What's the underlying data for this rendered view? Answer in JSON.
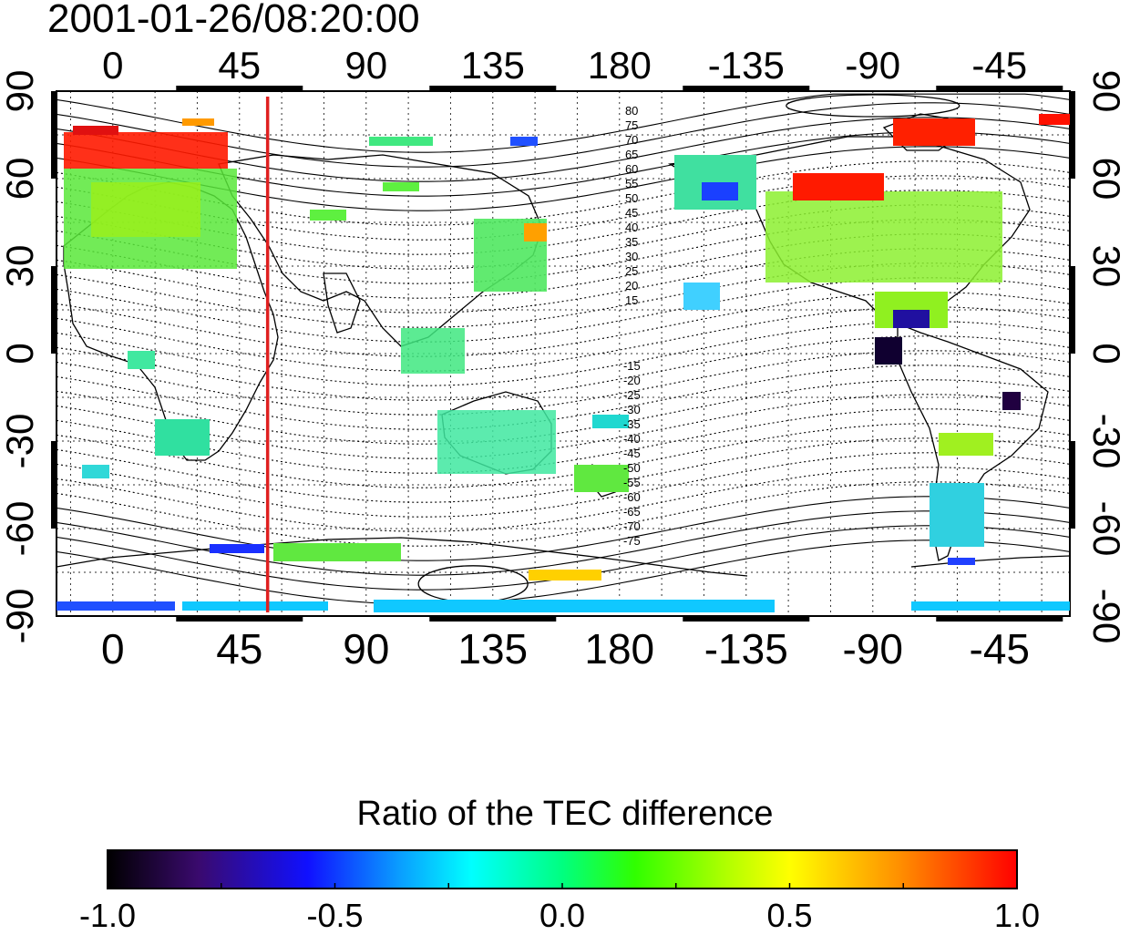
{
  "title": "2001-01-26/08:20:00",
  "lon_ticks": [
    "0",
    "45",
    "90",
    "135",
    "180",
    "-135",
    "-90",
    "-45"
  ],
  "lat_ticks": [
    "90",
    "60",
    "30",
    "0",
    "-30",
    "-60",
    "-90"
  ],
  "lon_tick_values": [
    0,
    45,
    90,
    135,
    180,
    225,
    270,
    315
  ],
  "lat_tick_values": [
    90,
    60,
    30,
    0,
    -30,
    -60,
    -90
  ],
  "map_extent": {
    "lon_start": -20,
    "lon_end": 340,
    "lat_min": -90,
    "lat_max": 90
  },
  "terminator_longitude": 55,
  "contour_labels_north": [
    "80",
    "75",
    "70",
    "65",
    "60",
    "55",
    "50",
    "45",
    "40",
    "35",
    "30",
    "25",
    "20",
    "15"
  ],
  "contour_labels_south": [
    "-15",
    "-20",
    "-25",
    "-30",
    "-35",
    "-40",
    "-45",
    "-50",
    "-55",
    "-60",
    "-65",
    "-70",
    "-75"
  ],
  "colorbar": {
    "title": "Ratio of the TEC difference",
    "min": -1.0,
    "max": 1.0,
    "tick_labels": [
      "-1.0",
      "-0.5",
      "0.0",
      "0.5",
      "1.0"
    ],
    "colors": [
      "#000000",
      "#3a0a6e",
      "#1010ff",
      "#0a9cff",
      "#00ffff",
      "#00ff80",
      "#30ff00",
      "#b0ff00",
      "#ffff00",
      "#ff9000",
      "#ff0000"
    ]
  },
  "colors": {
    "terminator": "#e02020",
    "frame": "#000000"
  }
}
